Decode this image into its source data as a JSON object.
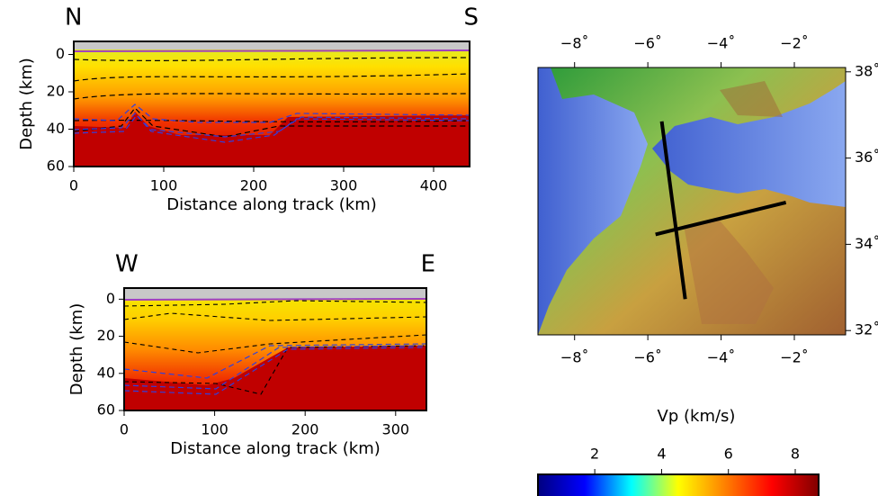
{
  "chart_data": [
    {
      "type": "section",
      "left_label": "N",
      "right_label": "S",
      "xlabel": "Distance along track (km)",
      "ylabel": "Depth (km)",
      "xlim": [
        0,
        440
      ],
      "xticks": [
        0,
        100,
        200,
        300,
        400
      ],
      "ylim": [
        -7,
        60
      ],
      "yticks": [
        0,
        20,
        40,
        60
      ],
      "y_inverted": true
    },
    {
      "type": "section",
      "left_label": "W",
      "right_label": "E",
      "xlabel": "Distance along track (km)",
      "ylabel": "Depth (km)",
      "xlim": [
        0,
        334
      ],
      "xticks": [
        0,
        100,
        200,
        300
      ],
      "ylim": [
        -6,
        60
      ],
      "yticks": [
        0,
        20,
        40,
        60
      ],
      "y_inverted": true
    },
    {
      "type": "map",
      "xlim": [
        -9,
        -0.6
      ],
      "xticks": [
        {
          "value": -8,
          "label": "−8˚"
        },
        {
          "value": -6,
          "label": "−6˚"
        },
        {
          "value": -4,
          "label": "−4˚"
        },
        {
          "value": -2,
          "label": "−2˚"
        }
      ],
      "ylim": [
        31.9,
        38.1
      ],
      "yticks": [
        {
          "value": 32,
          "label": "32˚"
        },
        {
          "value": 34,
          "label": "34˚"
        },
        {
          "value": 36,
          "label": "36˚"
        },
        {
          "value": 38,
          "label": "38˚"
        }
      ],
      "tracks": [
        {
          "lon": [
            -5.62,
            -4.98
          ],
          "lat": [
            36.85,
            32.73
          ],
          "color": "#000000"
        },
        {
          "lon": [
            -5.79,
            -2.23
          ],
          "lat": [
            34.23,
            34.97
          ],
          "color": "#000000"
        }
      ]
    },
    {
      "type": "colorbar",
      "title": "Vp (km/s)",
      "xlim": [
        0.3,
        8.7
      ],
      "xticks": [
        2,
        4,
        6,
        8
      ],
      "colors": [
        "#000080",
        "#0000ff",
        "#00ffff",
        "#ffff00",
        "#ff8000",
        "#ff0000",
        "#800000"
      ]
    }
  ]
}
